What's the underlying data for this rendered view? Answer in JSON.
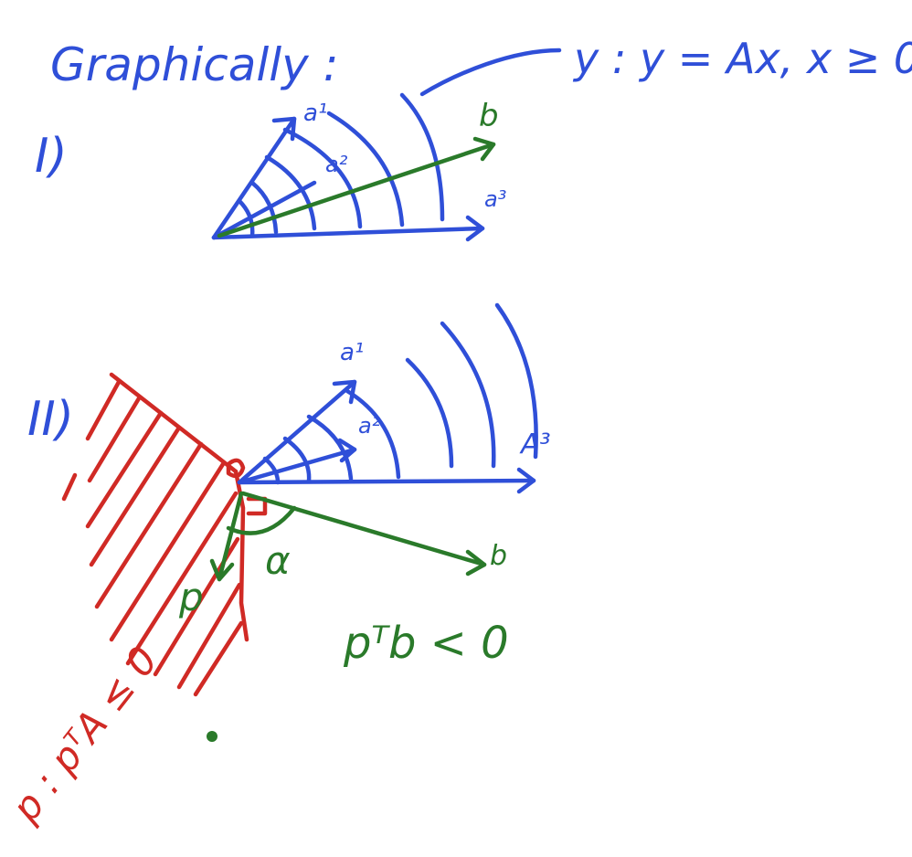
{
  "heading": "Graphically :",
  "cone_label": "y : y = Ax, x ≥ 0",
  "case_1": {
    "roman": "I)",
    "vec_a1": "a¹",
    "vec_a2": "a²",
    "vec_a3": "a³",
    "vec_b": "b"
  },
  "case_2": {
    "roman": "II)",
    "vec_a1": "a¹",
    "vec_a2": "a²",
    "vec_a3": "A³",
    "vec_b": "b",
    "vec_p": "p",
    "angle": "α",
    "cond_pb": "pᵀb < 0",
    "cond_pA": "p : pᵀA ≤ 0"
  },
  "colors": {
    "blue": "#2f4fd8",
    "green": "#2a7a2a",
    "red": "#d02a25"
  }
}
